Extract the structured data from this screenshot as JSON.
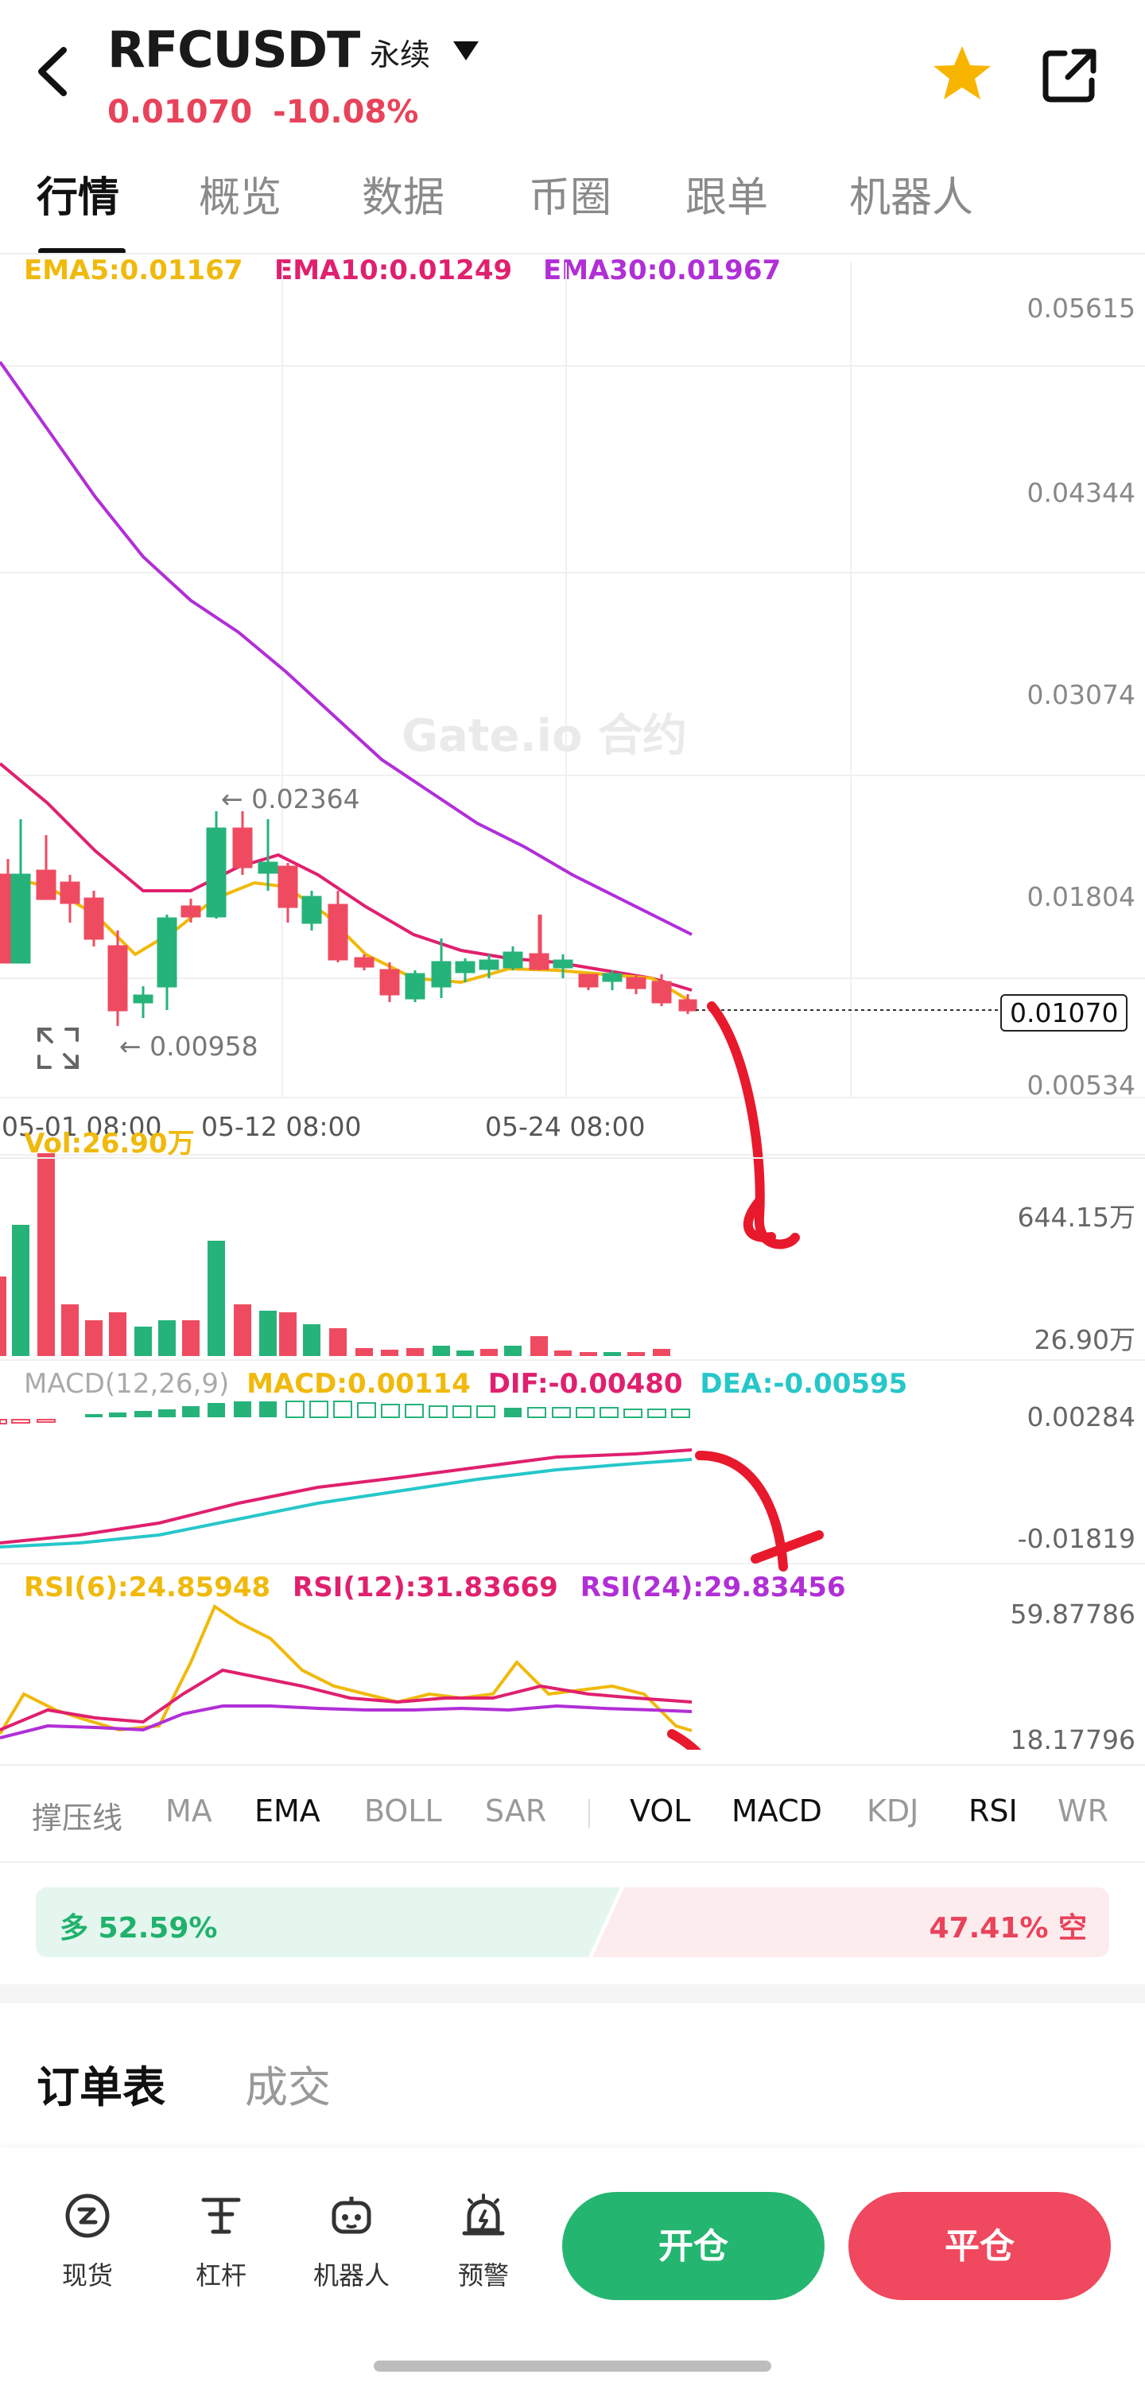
{
  "header": {
    "back_icon": "chevron-left-icon",
    "symbol": "RFCUSDT",
    "type": "永续",
    "price": "0.01070",
    "change": "-10.08%",
    "star_icon": "star-icon",
    "share_icon": "share-icon"
  },
  "tabs": [
    "行情",
    "概览",
    "数据",
    "币圈",
    "跟单",
    "机器人"
  ],
  "ema": {
    "ema5": "EMA5:0.01167",
    "ema10": "EMA10:0.01249",
    "ema30": "EMA30:0.01967",
    "colors": {
      "ema5": "#f0b90b",
      "ema10": "#e0206e",
      "ema30": "#b12fd6"
    }
  },
  "chart": {
    "y_ticks": [
      "0.05615",
      "0.04344",
      "0.03074",
      "0.01804",
      "0.00534"
    ],
    "current_price": "0.01070",
    "high_marker": "← 0.02364",
    "low_marker": "← 0.00958",
    "time_labels": [
      "05-01 08:00",
      "05-12 08:00",
      "05-24 08:00"
    ],
    "watermark": "Gate.io 合约",
    "expand_icon": "expand-icon",
    "colors": {
      "up": "#26b37a",
      "down": "#ee4b61"
    }
  },
  "volume": {
    "label": "Vol:26.90万",
    "ticks": [
      "644.15万",
      "26.90万"
    ]
  },
  "macd": {
    "params": "MACD(12,26,9)",
    "macd": "MACD:0.00114",
    "dif": "DIF:-0.00480",
    "dea": "DEA:-0.00595",
    "ticks": [
      "0.00284",
      "-0.01819"
    ]
  },
  "rsi": {
    "rsi6": "RSI(6):24.85948",
    "rsi12": "RSI(12):31.83669",
    "rsi24": "RSI(24):29.83456",
    "ticks": [
      "59.87786",
      "18.17796"
    ]
  },
  "toolbar": [
    "撑压线",
    "MA",
    "EMA",
    "BOLL",
    "SAR",
    "VOL",
    "MACD",
    "KDJ",
    "RSI",
    "WR"
  ],
  "ratio": {
    "long": "多 52.59%",
    "short": "47.41% 空"
  },
  "order_tabs": [
    "订单表",
    "成交"
  ],
  "bottom_nav": {
    "items": [
      {
        "label": "现货",
        "icon": "spot-icon"
      },
      {
        "label": "杠杆",
        "icon": "leverage-icon"
      },
      {
        "label": "机器人",
        "icon": "robot-icon"
      },
      {
        "label": "预警",
        "icon": "alarm-icon"
      }
    ],
    "open_label": "开仓",
    "close_label": "平仓"
  }
}
